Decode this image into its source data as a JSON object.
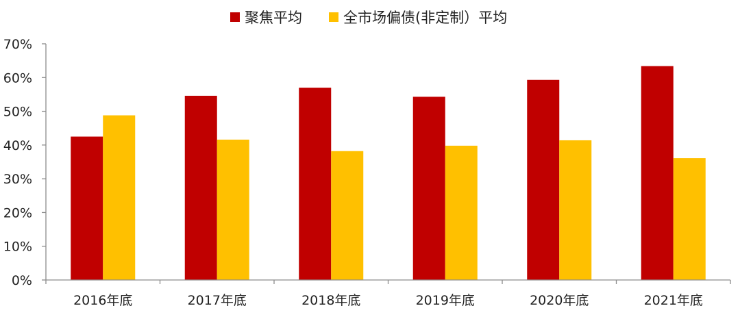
{
  "chart_data": {
    "type": "bar",
    "title": "",
    "xlabel": "",
    "ylabel": "",
    "categories": [
      "2016年底",
      "2017年底",
      "2018年底",
      "2019年底",
      "2020年底",
      "2021年底"
    ],
    "series": [
      {
        "name": "聚焦平均",
        "color": "#C00000",
        "values": [
          42.5,
          54.6,
          57.0,
          54.3,
          59.3,
          63.4
        ]
      },
      {
        "name": "全市场偏债(非定制）平均",
        "color": "#FFC000",
        "values": [
          48.8,
          41.6,
          38.2,
          39.8,
          41.4,
          36.1
        ]
      }
    ],
    "ylim": [
      0,
      70
    ],
    "yticks": [
      0,
      10,
      20,
      30,
      40,
      50,
      60,
      70
    ],
    "ytick_labels": [
      "0%",
      "10%",
      "20%",
      "30%",
      "40%",
      "50%",
      "60%",
      "70%"
    ],
    "grid": false,
    "legend_position": "top-center"
  }
}
